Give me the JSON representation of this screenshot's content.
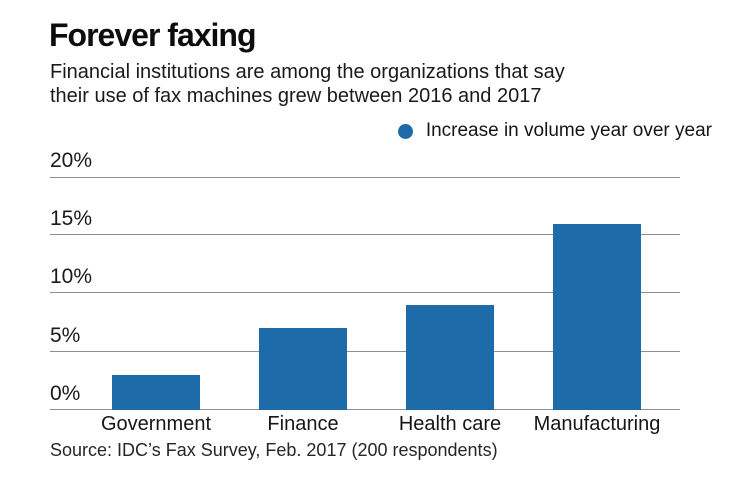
{
  "colors": {
    "background": "#ffffff",
    "bar": "#1d6ba8",
    "grid": "#8e8e8e",
    "text": "#141414"
  },
  "chart_data": {
    "type": "bar",
    "title": "Forever faxing",
    "subtitle_lines": [
      "Financial institutions are among the organizations that say",
      "their use of fax machines grew between 2016 and 2017"
    ],
    "legend": {
      "label": "Increase in volume year over year",
      "marker": "circle-icon",
      "marker_color": "#1d6ba8",
      "position": "top-right"
    },
    "categories": [
      "Government",
      "Finance",
      "Health care",
      "Manufacturing"
    ],
    "values": [
      3,
      7,
      9,
      16
    ],
    "bar_color": "#1d6ba8",
    "xlabel": "",
    "ylabel": "",
    "ylim": [
      0,
      20
    ],
    "yticks": [
      {
        "value": 0,
        "label": "0%"
      },
      {
        "value": 5,
        "label": "5%"
      },
      {
        "value": 10,
        "label": "10%"
      },
      {
        "value": 15,
        "label": "15%"
      },
      {
        "value": 20,
        "label": "20%"
      }
    ],
    "grid": true,
    "source": "Source: IDC’s Fax Survey, Feb. 2017 (200 respondents)"
  }
}
